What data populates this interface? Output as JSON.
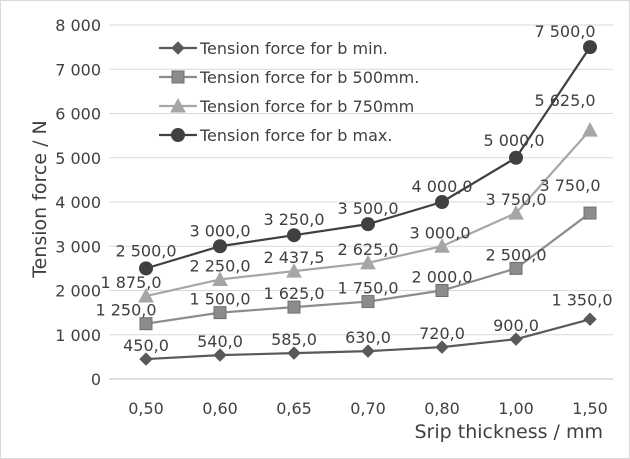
{
  "chart_data": {
    "type": "line",
    "title": "",
    "xlabel": "Srip thickness / mm",
    "ylabel": "Tension force / N",
    "categories": [
      "0,50",
      "0,60",
      "0,65",
      "0,70",
      "0,80",
      "1,00",
      "1,50"
    ],
    "ylim": [
      0,
      8000
    ],
    "yticks": [
      {
        "value": 0,
        "label": "0"
      },
      {
        "value": 1000,
        "label": "1 000"
      },
      {
        "value": 2000,
        "label": "2 000"
      },
      {
        "value": 3000,
        "label": "3 000"
      },
      {
        "value": 4000,
        "label": "4 000"
      },
      {
        "value": 5000,
        "label": "5 000"
      },
      {
        "value": 6000,
        "label": "6 000"
      },
      {
        "value": 7000,
        "label": "7 000"
      },
      {
        "value": 8000,
        "label": "8 000"
      }
    ],
    "grid": true,
    "legend_position": "top-left",
    "series": [
      {
        "name": "Tension force for b min.",
        "marker": "diamond",
        "color": "#595959",
        "values": [
          450,
          540,
          585,
          630,
          720,
          900,
          1350
        ],
        "labels": [
          "450,0",
          "540,0",
          "585,0",
          "630,0",
          "720,0",
          "900,0",
          "1 350,0"
        ]
      },
      {
        "name": "Tension force for b 500mm.",
        "marker": "square",
        "color": "#8c8c8c",
        "values": [
          1250,
          1500,
          1625,
          1750,
          2000,
          2500,
          3750
        ],
        "labels": [
          "1 250,0",
          "1 500,0",
          "1 625,0",
          "1 750,0",
          "2 000,0",
          "2 500,0",
          "3 750,0"
        ]
      },
      {
        "name": "Tension force for b 750mm",
        "marker": "triangle",
        "color": "#a6a6a6",
        "values": [
          1875,
          2250,
          2437.5,
          2625,
          3000,
          3750,
          5625
        ],
        "labels": [
          "1 875,0",
          "2 250,0",
          "2 437,5",
          "2 625,0",
          "3 000,0",
          "3 750,0",
          "5 625,0"
        ]
      },
      {
        "name": "Tension force for b max.",
        "marker": "circle",
        "color": "#404040",
        "values": [
          2500,
          3000,
          3250,
          3500,
          4000,
          5000,
          7500
        ],
        "labels": [
          "2 500,0",
          "3 000,0",
          "3 250,0",
          "3 500,0",
          "4 000,0",
          "5 000,0",
          "7 500,0"
        ]
      }
    ]
  }
}
